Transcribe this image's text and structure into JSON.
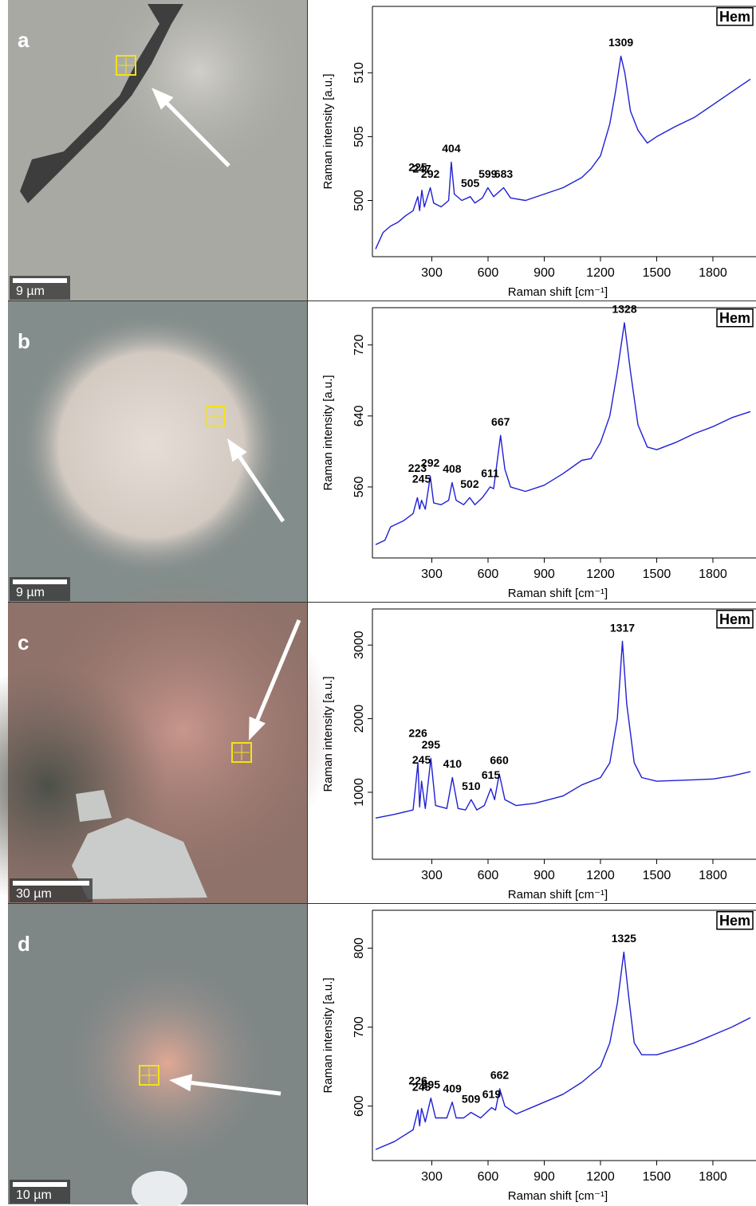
{
  "chart_data": [
    {
      "type": "line",
      "panel_label": "a",
      "scale_bar": "9 µm",
      "mineral_label": "Hem",
      "xlabel": "Raman shift [cm⁻¹]",
      "ylabel": "Raman intensity [a.u.]",
      "color": "#1f1fd6",
      "xlim": [
        0,
        2030
      ],
      "ylim": [
        495.6,
        515.2
      ],
      "xticks": [
        300,
        600,
        900,
        1200,
        1500,
        1800
      ],
      "yticks": [
        500,
        505,
        510
      ],
      "x": [
        0,
        40,
        80,
        120,
        160,
        200,
        225,
        235,
        247,
        260,
        292,
        310,
        350,
        390,
        404,
        420,
        460,
        505,
        530,
        570,
        599,
        630,
        683,
        720,
        800,
        900,
        1000,
        1100,
        1150,
        1200,
        1250,
        1280,
        1309,
        1330,
        1360,
        1400,
        1450,
        1500,
        1600,
        1700,
        1800,
        1900,
        2000
      ],
      "values": [
        496.2,
        497.5,
        498,
        498.3,
        498.8,
        499.2,
        500.3,
        499.2,
        500.8,
        499.5,
        501,
        499.8,
        499.5,
        500,
        503,
        500.5,
        500,
        500.3,
        499.8,
        500.2,
        501,
        500.3,
        501,
        500.2,
        500,
        500.5,
        501,
        501.8,
        502.5,
        503.5,
        506,
        508.5,
        511.3,
        510,
        507,
        505.5,
        504.5,
        505,
        505.8,
        506.5,
        507.5,
        508.5,
        509.5
      ],
      "peaks": [
        225,
        247,
        292,
        404,
        505,
        599,
        683,
        1309
      ]
    },
    {
      "type": "line",
      "panel_label": "b",
      "scale_bar": "9 µm",
      "mineral_label": "Hem",
      "xlabel": "Raman shift [cm⁻¹]",
      "ylabel": "Raman intensity [a.u.]",
      "color": "#1f1fd6",
      "xlim": [
        0,
        2030
      ],
      "ylim": [
        480,
        762
      ],
      "xticks": [
        300,
        600,
        900,
        1200,
        1500,
        1800
      ],
      "yticks": [
        560,
        640,
        720
      ],
      "x": [
        0,
        50,
        80,
        150,
        200,
        223,
        235,
        245,
        265,
        292,
        310,
        350,
        390,
        408,
        430,
        470,
        502,
        530,
        570,
        611,
        630,
        667,
        690,
        720,
        800,
        900,
        1000,
        1100,
        1150,
        1200,
        1250,
        1290,
        1328,
        1360,
        1400,
        1450,
        1500,
        1600,
        1700,
        1800,
        1900,
        2000
      ],
      "values": [
        495,
        500,
        515,
        522,
        530,
        548,
        535,
        545,
        535,
        572,
        542,
        540,
        545,
        565,
        545,
        540,
        548,
        540,
        548,
        560,
        558,
        618,
        580,
        560,
        555,
        562,
        575,
        590,
        592,
        610,
        640,
        690,
        745,
        690,
        630,
        605,
        602,
        610,
        620,
        628,
        638,
        645
      ],
      "peaks": [
        223,
        245,
        292,
        408,
        502,
        611,
        667,
        1328
      ]
    },
    {
      "type": "line",
      "panel_label": "c",
      "scale_bar": "30 µm",
      "mineral_label": "Hem",
      "xlabel": "Raman shift [cm⁻¹]",
      "ylabel": "Raman intensity [a.u.]",
      "color": "#1f1fd6",
      "xlim": [
        0,
        2030
      ],
      "ylim": [
        90,
        3490
      ],
      "xticks": [
        300,
        600,
        900,
        1200,
        1500,
        1800
      ],
      "yticks": [
        1000,
        2000,
        3000
      ],
      "x": [
        0,
        100,
        200,
        226,
        235,
        245,
        265,
        295,
        320,
        380,
        410,
        440,
        480,
        510,
        540,
        580,
        615,
        635,
        660,
        690,
        750,
        850,
        1000,
        1100,
        1200,
        1250,
        1290,
        1317,
        1340,
        1380,
        1420,
        1500,
        1600,
        1700,
        1800,
        1900,
        2000
      ],
      "values": [
        650,
        700,
        760,
        1400,
        800,
        1150,
        780,
        1460,
        820,
        780,
        1200,
        780,
        760,
        900,
        760,
        820,
        1050,
        900,
        1250,
        900,
        820,
        850,
        950,
        1100,
        1200,
        1400,
        2000,
        3050,
        2200,
        1400,
        1200,
        1150,
        1160,
        1170,
        1180,
        1220,
        1280
      ],
      "peaks": [
        226,
        245,
        295,
        410,
        510,
        615,
        660,
        1317
      ]
    },
    {
      "type": "line",
      "panel_label": "d",
      "scale_bar": "10 µm",
      "mineral_label": "Hem",
      "xlabel": "Raman shift [cm⁻¹]",
      "ylabel": "Raman intensity [a.u.]",
      "color": "#1f1fd6",
      "xlim": [
        0,
        2030
      ],
      "ylim": [
        531,
        848
      ],
      "xticks": [
        300,
        600,
        900,
        1200,
        1500,
        1800
      ],
      "yticks": [
        600,
        700,
        800
      ],
      "x": [
        0,
        100,
        200,
        226,
        235,
        245,
        265,
        295,
        320,
        380,
        409,
        430,
        470,
        509,
        560,
        619,
        640,
        662,
        690,
        750,
        850,
        1000,
        1100,
        1200,
        1250,
        1290,
        1325,
        1350,
        1380,
        1420,
        1500,
        1600,
        1700,
        1800,
        1900,
        2000
      ],
      "values": [
        545,
        555,
        570,
        595,
        575,
        597,
        580,
        610,
        585,
        585,
        605,
        585,
        585,
        592,
        585,
        598,
        595,
        622,
        600,
        590,
        600,
        615,
        630,
        650,
        680,
        730,
        795,
        740,
        680,
        665,
        665,
        672,
        680,
        690,
        700,
        712
      ],
      "peaks": [
        226,
        245,
        295,
        409,
        509,
        619,
        662,
        1325
      ]
    }
  ]
}
